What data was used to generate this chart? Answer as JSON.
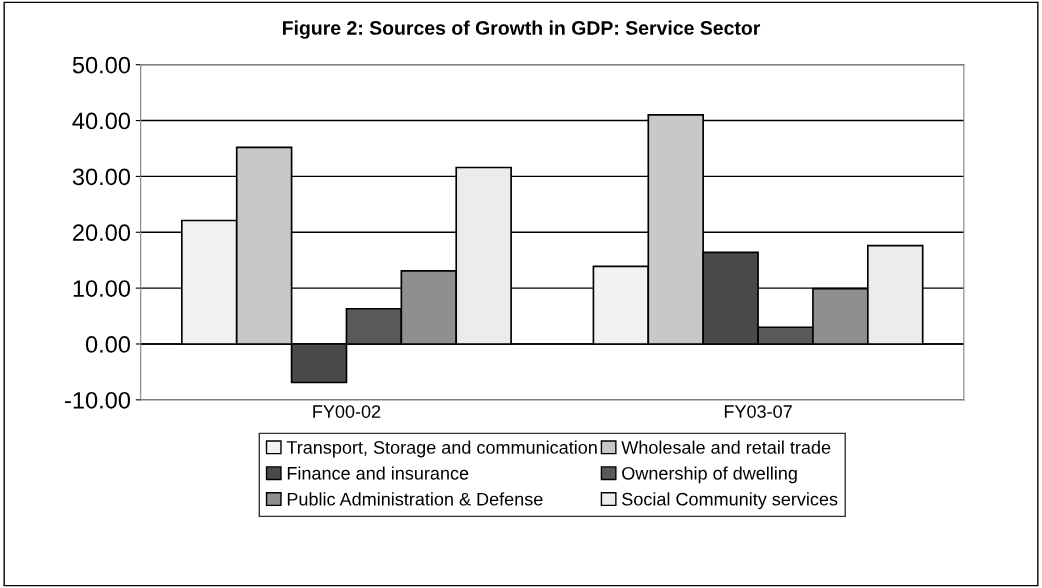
{
  "chart_data": {
    "type": "bar",
    "title": "Figure 2: Sources of Growth in GDP: Service Sector",
    "categories": [
      "FY00-02",
      "FY03-07"
    ],
    "series": [
      {
        "name": "Transport, Storage and communication",
        "color": "#f2f2f2",
        "values": [
          22.1,
          13.9
        ]
      },
      {
        "name": "Wholesale and retail trade",
        "color": "#c8c8c8",
        "values": [
          35.2,
          41.0
        ]
      },
      {
        "name": "Finance and insurance",
        "color": "#4a4a4a",
        "values": [
          -6.9,
          16.4
        ]
      },
      {
        "name": "Ownership of dwelling",
        "color": "#5a5a5a",
        "values": [
          6.3,
          3.0
        ]
      },
      {
        "name": "Public Administration & Defense",
        "color": "#8f8f8f",
        "values": [
          13.1,
          9.9
        ]
      },
      {
        "name": "Social Community services",
        "color": "#ececec",
        "values": [
          31.6,
          17.6
        ]
      }
    ],
    "ylim": [
      -10,
      50
    ],
    "yticks": [
      {
        "value": -10,
        "label": "-10.00"
      },
      {
        "value": 0,
        "label": "0.00"
      },
      {
        "value": 10,
        "label": "10.00"
      },
      {
        "value": 20,
        "label": "20.00"
      },
      {
        "value": 30,
        "label": "30.00"
      },
      {
        "value": 40,
        "label": "40.00"
      },
      {
        "value": 50,
        "label": "50.00"
      }
    ],
    "grid": "y",
    "legend": "bottom"
  }
}
